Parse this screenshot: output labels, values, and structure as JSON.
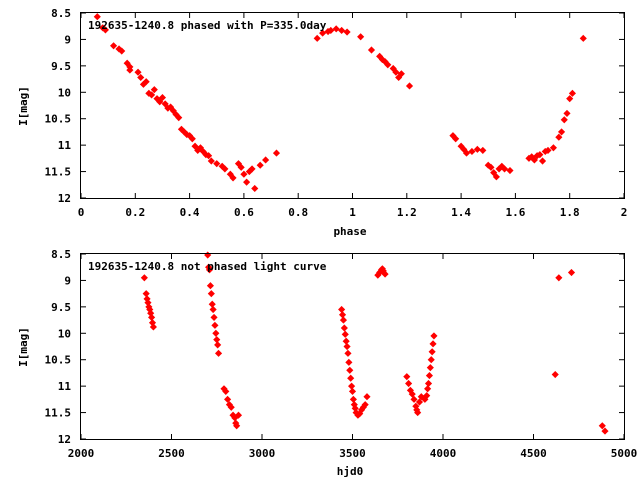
{
  "chart_data": [
    {
      "type": "scatter",
      "title": "192635-1240.8 phased with P=335.0day",
      "xlabel": "phase",
      "ylabel": "I[mag]",
      "xlim": [
        0,
        2
      ],
      "ylim": [
        8.5,
        12
      ],
      "y_inverted": true,
      "grid": false,
      "x_ticks": [
        "0",
        "0.2",
        "0.4",
        "0.6",
        "0.8",
        "1",
        "1.2",
        "1.4",
        "1.6",
        "1.8",
        "2"
      ],
      "y_ticks": [
        "8.5",
        "9",
        "9.5",
        "10",
        "10.5",
        "11",
        "11.5",
        "12"
      ],
      "marker_color": "#ff0000",
      "series": [
        {
          "points": [
            [
              0.06,
              8.57
            ],
            [
              0.08,
              8.78
            ],
            [
              0.09,
              8.82
            ],
            [
              0.12,
              9.12
            ],
            [
              0.14,
              9.18
            ],
            [
              0.15,
              9.22
            ],
            [
              0.17,
              9.45
            ],
            [
              0.18,
              9.52
            ],
            [
              0.18,
              9.58
            ],
            [
              0.21,
              9.62
            ],
            [
              0.22,
              9.72
            ],
            [
              0.23,
              9.85
            ],
            [
              0.24,
              9.8
            ],
            [
              0.25,
              10.02
            ],
            [
              0.26,
              10.05
            ],
            [
              0.27,
              9.95
            ],
            [
              0.28,
              10.12
            ],
            [
              0.29,
              10.18
            ],
            [
              0.3,
              10.1
            ],
            [
              0.31,
              10.22
            ],
            [
              0.32,
              10.3
            ],
            [
              0.33,
              10.28
            ],
            [
              0.34,
              10.35
            ],
            [
              0.35,
              10.42
            ],
            [
              0.36,
              10.48
            ],
            [
              0.37,
              10.7
            ],
            [
              0.38,
              10.75
            ],
            [
              0.39,
              10.8
            ],
            [
              0.4,
              10.82
            ],
            [
              0.41,
              10.88
            ],
            [
              0.42,
              11.02
            ],
            [
              0.43,
              11.1
            ],
            [
              0.44,
              11.05
            ],
            [
              0.45,
              11.12
            ],
            [
              0.46,
              11.18
            ],
            [
              0.47,
              11.2
            ],
            [
              0.48,
              11.3
            ],
            [
              0.5,
              11.35
            ],
            [
              0.52,
              11.4
            ],
            [
              0.53,
              11.45
            ],
            [
              0.55,
              11.55
            ],
            [
              0.56,
              11.62
            ],
            [
              0.58,
              11.35
            ],
            [
              0.59,
              11.42
            ],
            [
              0.6,
              11.55
            ],
            [
              0.61,
              11.7
            ],
            [
              0.62,
              11.5
            ],
            [
              0.63,
              11.45
            ],
            [
              0.64,
              11.82
            ],
            [
              0.66,
              11.38
            ],
            [
              0.68,
              11.28
            ],
            [
              0.72,
              11.15
            ],
            [
              0.87,
              8.98
            ],
            [
              0.89,
              8.88
            ],
            [
              0.91,
              8.85
            ],
            [
              0.92,
              8.83
            ],
            [
              0.94,
              8.8
            ],
            [
              0.96,
              8.83
            ],
            [
              0.98,
              8.86
            ],
            [
              1.03,
              8.95
            ],
            [
              1.07,
              9.2
            ],
            [
              1.1,
              9.32
            ],
            [
              1.11,
              9.38
            ],
            [
              1.12,
              9.42
            ],
            [
              1.13,
              9.48
            ],
            [
              1.15,
              9.55
            ],
            [
              1.16,
              9.62
            ],
            [
              1.17,
              9.72
            ],
            [
              1.18,
              9.65
            ],
            [
              1.21,
              9.88
            ],
            [
              1.37,
              10.82
            ],
            [
              1.38,
              10.88
            ],
            [
              1.4,
              11.02
            ],
            [
              1.41,
              11.08
            ],
            [
              1.42,
              11.15
            ],
            [
              1.44,
              11.12
            ],
            [
              1.46,
              11.08
            ],
            [
              1.48,
              11.1
            ],
            [
              1.5,
              11.38
            ],
            [
              1.51,
              11.42
            ],
            [
              1.52,
              11.52
            ],
            [
              1.53,
              11.6
            ],
            [
              1.54,
              11.45
            ],
            [
              1.55,
              11.4
            ],
            [
              1.56,
              11.45
            ],
            [
              1.58,
              11.48
            ],
            [
              1.65,
              11.25
            ],
            [
              1.66,
              11.22
            ],
            [
              1.67,
              11.28
            ],
            [
              1.68,
              11.2
            ],
            [
              1.69,
              11.18
            ],
            [
              1.7,
              11.3
            ],
            [
              1.71,
              11.12
            ],
            [
              1.72,
              11.1
            ],
            [
              1.74,
              11.05
            ],
            [
              1.76,
              10.85
            ],
            [
              1.77,
              10.75
            ],
            [
              1.78,
              10.52
            ],
            [
              1.79,
              10.4
            ],
            [
              1.8,
              10.12
            ],
            [
              1.81,
              10.02
            ],
            [
              1.85,
              8.98
            ]
          ]
        }
      ]
    },
    {
      "type": "scatter",
      "title": "192635-1240.8 not phased light curve",
      "xlabel": "hjd0",
      "ylabel": "I[mag]",
      "xlim": [
        2000,
        5000
      ],
      "ylim": [
        8.5,
        12
      ],
      "y_inverted": true,
      "grid": false,
      "x_ticks": [
        "2000",
        "2500",
        "3000",
        "3500",
        "4000",
        "4500",
        "5000"
      ],
      "y_ticks": [
        "8.5",
        "9",
        "9.5",
        "10",
        "10.5",
        "11",
        "11.5",
        "12"
      ],
      "marker_color": "#ff0000",
      "series": [
        {
          "points": [
            [
              2350,
              8.95
            ],
            [
              2360,
              9.25
            ],
            [
              2365,
              9.35
            ],
            [
              2370,
              9.42
            ],
            [
              2375,
              9.5
            ],
            [
              2380,
              9.55
            ],
            [
              2385,
              9.62
            ],
            [
              2390,
              9.7
            ],
            [
              2395,
              9.8
            ],
            [
              2400,
              9.88
            ],
            [
              2700,
              8.52
            ],
            [
              2705,
              8.75
            ],
            [
              2710,
              8.8
            ],
            [
              2715,
              9.1
            ],
            [
              2720,
              9.25
            ],
            [
              2725,
              9.45
            ],
            [
              2730,
              9.55
            ],
            [
              2735,
              9.7
            ],
            [
              2740,
              9.85
            ],
            [
              2745,
              10.0
            ],
            [
              2750,
              10.12
            ],
            [
              2755,
              10.22
            ],
            [
              2760,
              10.38
            ],
            [
              2790,
              11.05
            ],
            [
              2800,
              11.1
            ],
            [
              2810,
              11.25
            ],
            [
              2820,
              11.35
            ],
            [
              2830,
              11.4
            ],
            [
              2840,
              11.55
            ],
            [
              2850,
              11.6
            ],
            [
              2855,
              11.7
            ],
            [
              2860,
              11.75
            ],
            [
              2870,
              11.55
            ],
            [
              3440,
              9.55
            ],
            [
              3445,
              9.65
            ],
            [
              3450,
              9.75
            ],
            [
              3455,
              9.9
            ],
            [
              3460,
              10.02
            ],
            [
              3465,
              10.15
            ],
            [
              3470,
              10.25
            ],
            [
              3475,
              10.38
            ],
            [
              3480,
              10.55
            ],
            [
              3485,
              10.7
            ],
            [
              3490,
              10.85
            ],
            [
              3495,
              11.0
            ],
            [
              3500,
              11.1
            ],
            [
              3505,
              11.25
            ],
            [
              3510,
              11.35
            ],
            [
              3515,
              11.42
            ],
            [
              3520,
              11.5
            ],
            [
              3530,
              11.55
            ],
            [
              3540,
              11.52
            ],
            [
              3550,
              11.45
            ],
            [
              3560,
              11.4
            ],
            [
              3570,
              11.35
            ],
            [
              3580,
              11.2
            ],
            [
              3640,
              8.9
            ],
            [
              3650,
              8.85
            ],
            [
              3660,
              8.8
            ],
            [
              3665,
              8.78
            ],
            [
              3670,
              8.82
            ],
            [
              3680,
              8.88
            ],
            [
              3800,
              10.82
            ],
            [
              3810,
              10.95
            ],
            [
              3820,
              11.08
            ],
            [
              3830,
              11.15
            ],
            [
              3840,
              11.25
            ],
            [
              3850,
              11.38
            ],
            [
              3855,
              11.45
            ],
            [
              3860,
              11.5
            ],
            [
              3870,
              11.3
            ],
            [
              3880,
              11.2
            ],
            [
              3900,
              11.25
            ],
            [
              3910,
              11.18
            ],
            [
              3915,
              11.05
            ],
            [
              3920,
              10.95
            ],
            [
              3925,
              10.8
            ],
            [
              3930,
              10.65
            ],
            [
              3935,
              10.5
            ],
            [
              3940,
              10.35
            ],
            [
              3945,
              10.2
            ],
            [
              3950,
              10.05
            ],
            [
              4620,
              10.78
            ],
            [
              4640,
              8.95
            ],
            [
              4710,
              8.85
            ],
            [
              4880,
              11.75
            ],
            [
              4895,
              11.85
            ]
          ]
        }
      ]
    }
  ]
}
